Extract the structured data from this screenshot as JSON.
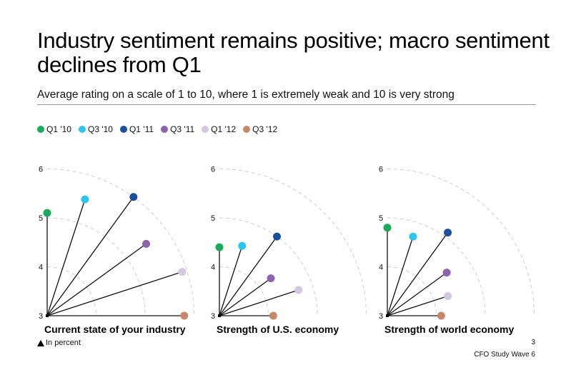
{
  "title": "Industry sentiment remains positive; macro sentiment declines from Q1",
  "subtitle": "Average rating on a scale of 1 to 10, where 1 is extremely weak and 10 is very strong",
  "legend": [
    {
      "label": "Q1 '10",
      "color": "#1aaa5a"
    },
    {
      "label": "Q3 '10",
      "color": "#2ec4f0"
    },
    {
      "label": "Q1 '11",
      "color": "#1a4fa0"
    },
    {
      "label": "Q3 '11",
      "color": "#8e63ad"
    },
    {
      "label": "Q1 '12",
      "color": "#d6c6e3"
    },
    {
      "label": "Q3 '12",
      "color": "#c9876a"
    }
  ],
  "footnote": "In percent",
  "page_number": "3",
  "study_label": "CFO Study Wave 6",
  "chart_data": [
    {
      "type": "radial-lollipop",
      "title": "Current state of your industry",
      "axis_ticks": [
        "3",
        "4",
        "5",
        "6"
      ],
      "axis_range": [
        3,
        6
      ],
      "series": [
        "Q1 '10",
        "Q3 '10",
        "Q1 '11",
        "Q3 '11",
        "Q1 '12",
        "Q3 '12"
      ],
      "values": [
        5.1,
        5.5,
        6.0,
        5.5,
        5.9,
        5.8
      ]
    },
    {
      "type": "radial-lollipop",
      "title": "Strength of U.S. economy",
      "axis_ticks": [
        "3",
        "4",
        "5",
        "6"
      ],
      "axis_range": [
        3,
        6
      ],
      "series": [
        "Q1 '10",
        "Q3 '10",
        "Q1 '11",
        "Q3 '11",
        "Q1 '12",
        "Q3 '12"
      ],
      "values": [
        4.4,
        4.5,
        5.0,
        4.3,
        4.7,
        4.1
      ]
    },
    {
      "type": "radial-lollipop",
      "title": "Strength of world economy",
      "axis_ticks": [
        "3",
        "4",
        "5",
        "6"
      ],
      "axis_range": [
        3,
        6
      ],
      "series": [
        "Q1 '10",
        "Q3 '10",
        "Q1 '11",
        "Q3 '11",
        "Q1 '12",
        "Q3 '12"
      ],
      "values": [
        4.8,
        4.7,
        5.1,
        4.5,
        4.3,
        4.1
      ]
    }
  ]
}
